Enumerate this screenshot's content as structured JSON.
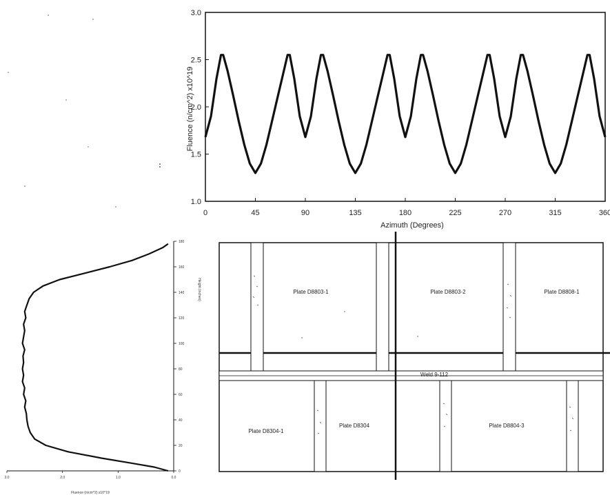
{
  "chart_data": [
    {
      "type": "line",
      "xlabel": "Azimuth (Degrees)",
      "ylabel": "Fluence (n/cm^2) x10^19",
      "xlim": [
        0,
        360
      ],
      "ylim": [
        1.0,
        3.0
      ],
      "x_ticks": [
        "0",
        "45",
        "90",
        "135",
        "180",
        "225",
        "270",
        "315",
        "360"
      ],
      "y_ticks": [
        "3.0",
        "2.5",
        "2.0",
        "1.5",
        "1.0"
      ],
      "x": [
        0,
        5,
        10,
        14,
        16,
        20,
        25,
        30,
        35,
        40,
        45,
        50,
        55,
        60,
        65,
        70,
        74,
        76,
        80,
        85,
        90,
        95,
        100,
        104,
        106,
        110,
        115,
        120,
        125,
        130,
        135,
        140,
        145,
        150,
        155,
        160,
        164,
        166,
        170,
        175,
        180,
        185,
        190,
        194,
        196,
        200,
        205,
        210,
        215,
        220,
        225,
        230,
        235,
        240,
        245,
        250,
        254,
        256,
        260,
        265,
        270,
        275,
        280,
        284,
        286,
        290,
        295,
        300,
        305,
        310,
        315,
        320,
        325,
        330,
        335,
        340,
        344,
        346,
        350,
        355,
        360
      ],
      "series": [
        {
          "values": [
            1.68,
            1.9,
            2.3,
            2.55,
            2.55,
            2.38,
            2.12,
            1.85,
            1.6,
            1.4,
            1.3,
            1.4,
            1.6,
            1.85,
            2.1,
            2.35,
            2.55,
            2.55,
            2.3,
            1.9,
            1.68,
            1.9,
            2.3,
            2.55,
            2.55,
            2.38,
            2.12,
            1.85,
            1.6,
            1.4,
            1.3,
            1.4,
            1.6,
            1.85,
            2.1,
            2.35,
            2.55,
            2.55,
            2.3,
            1.9,
            1.68,
            1.9,
            2.3,
            2.55,
            2.55,
            2.38,
            2.12,
            1.85,
            1.6,
            1.4,
            1.3,
            1.4,
            1.6,
            1.85,
            2.1,
            2.35,
            2.55,
            2.55,
            2.3,
            1.9,
            1.68,
            1.9,
            2.3,
            2.55,
            2.55,
            2.38,
            2.12,
            1.85,
            1.6,
            1.4,
            1.3,
            1.4,
            1.6,
            1.85,
            2.1,
            2.35,
            2.55,
            2.55,
            2.3,
            1.9,
            1.68
          ]
        }
      ]
    },
    {
      "type": "line",
      "xlabel": "Fluence (n/cm^2) x10^19",
      "ylabel": "Height (inches)",
      "xlim": [
        3.0,
        0.0
      ],
      "ylim": [
        0,
        180
      ],
      "x_ticks": [
        "3.0",
        "2.0",
        "1.0",
        "0.0"
      ],
      "y_ticks": [
        "180",
        "160",
        "140",
        "120",
        "100",
        "80",
        "60",
        "40",
        "20",
        "0"
      ],
      "series": [
        {
          "height": [
            0,
            3,
            6,
            10,
            15,
            20,
            25,
            30,
            35,
            40,
            45,
            50,
            55,
            60,
            65,
            70,
            75,
            80,
            85,
            90,
            95,
            100,
            105,
            110,
            115,
            120,
            125,
            130,
            135,
            140,
            145,
            150,
            155,
            160,
            165,
            170,
            175,
            178
          ],
          "fluence": [
            0.1,
            0.35,
            0.75,
            1.3,
            1.9,
            2.3,
            2.5,
            2.58,
            2.62,
            2.64,
            2.65,
            2.68,
            2.66,
            2.7,
            2.68,
            2.72,
            2.7,
            2.72,
            2.7,
            2.71,
            2.68,
            2.72,
            2.7,
            2.68,
            2.7,
            2.66,
            2.68,
            2.64,
            2.6,
            2.52,
            2.35,
            2.05,
            1.6,
            1.15,
            0.75,
            0.45,
            0.2,
            0.1
          ]
        }
      ]
    }
  ],
  "diagram": {
    "plates": {
      "upper_1": "Plate D8803-1",
      "upper_2": "Plate D8803-2",
      "upper_3": "Plate D8808-1",
      "lower_1": "Plate D8304-1",
      "lower_2": "Plate D8304",
      "lower_3": "Plate D8804-3"
    },
    "weld_label": "Weld 9-112"
  }
}
